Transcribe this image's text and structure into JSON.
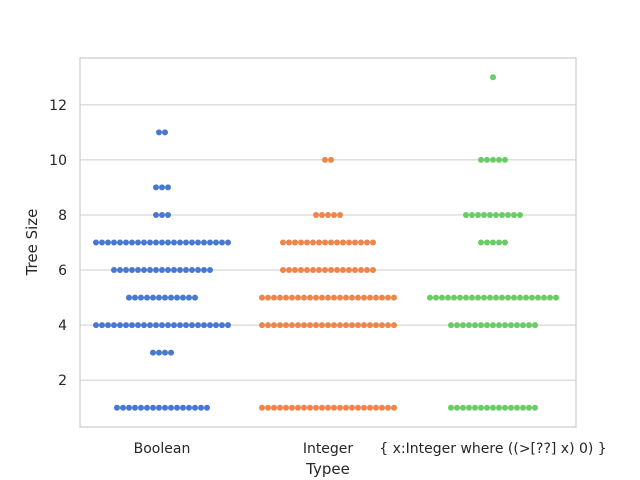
{
  "chart_data": {
    "type": "swarm",
    "xlabel": "Typee",
    "ylabel": "Tree Size",
    "categories": [
      "Boolean",
      "Integer",
      "{ x:Integer where ((>[??] x) 0) }"
    ],
    "yticks": [
      2,
      4,
      6,
      8,
      10,
      12
    ],
    "ylim": [
      0.3,
      13.7
    ],
    "grid": "horizontal",
    "colors": [
      "#4878d0",
      "#ee854a",
      "#6acc64"
    ],
    "series": [
      {
        "category": "Boolean",
        "counts": [
          {
            "y": 1,
            "n": 16
          },
          {
            "y": 3,
            "n": 4
          },
          {
            "y": 4,
            "n": 23
          },
          {
            "y": 5,
            "n": 12
          },
          {
            "y": 6,
            "n": 17
          },
          {
            "y": 7,
            "n": 23
          },
          {
            "y": 8,
            "n": 3
          },
          {
            "y": 9,
            "n": 3
          },
          {
            "y": 11,
            "n": 2
          }
        ]
      },
      {
        "category": "Integer",
        "counts": [
          {
            "y": 1,
            "n": 23
          },
          {
            "y": 4,
            "n": 23
          },
          {
            "y": 5,
            "n": 23
          },
          {
            "y": 6,
            "n": 16
          },
          {
            "y": 7,
            "n": 16
          },
          {
            "y": 8,
            "n": 5
          },
          {
            "y": 10,
            "n": 2
          }
        ]
      },
      {
        "category": "{ x:Integer where ((>[??] x) 0) }",
        "counts": [
          {
            "y": 1,
            "n": 15
          },
          {
            "y": 4,
            "n": 15
          },
          {
            "y": 5,
            "n": 22
          },
          {
            "y": 7,
            "n": 5
          },
          {
            "y": 8,
            "n": 10
          },
          {
            "y": 10,
            "n": 5
          },
          {
            "y": 13,
            "n": 1
          }
        ]
      }
    ]
  }
}
